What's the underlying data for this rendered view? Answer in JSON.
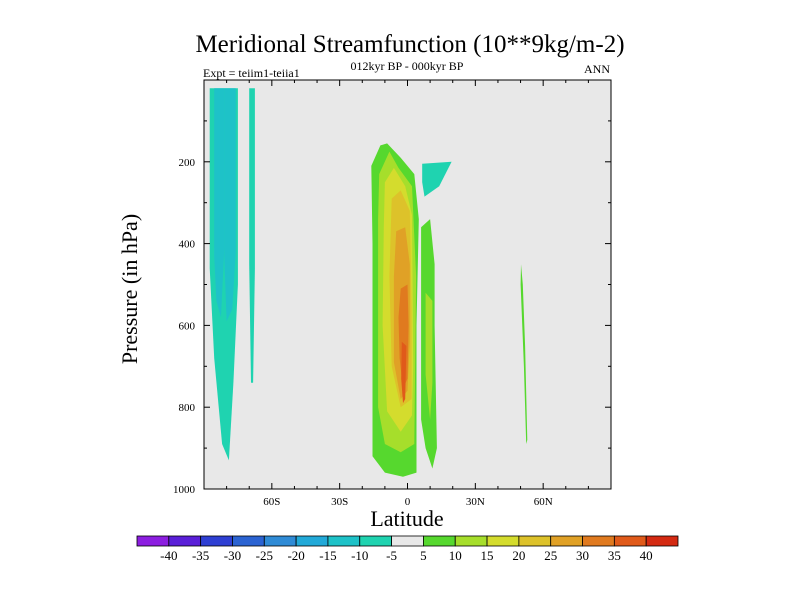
{
  "chart_data": {
    "type": "contour",
    "title": "Meridional Streamfunction (10**9kg/m-2)",
    "subtitle_left": "Expt = teiim1-teiia1",
    "subtitle_center": "012kyr BP - 000kyr BP",
    "subtitle_right": "ANN",
    "xlabel": "Latitude",
    "ylabel": "Pressure (in hPa)",
    "xlim": [
      -90,
      90
    ],
    "ylim": [
      0,
      1000
    ],
    "y_reversed": true,
    "background_color": "#e8e8e8",
    "x_ticks": [
      {
        "value": -60,
        "label": "60S"
      },
      {
        "value": -30,
        "label": "30S"
      },
      {
        "value": 0,
        "label": "0"
      },
      {
        "value": 30,
        "label": "30N"
      },
      {
        "value": 60,
        "label": "60N"
      }
    ],
    "y_ticks": [
      {
        "value": 200,
        "label": "200"
      },
      {
        "value": 400,
        "label": "400"
      },
      {
        "value": 600,
        "label": "600"
      },
      {
        "value": 800,
        "label": "800"
      },
      {
        "value": 1000,
        "label": "1000"
      }
    ],
    "colorbar": {
      "levels": [
        "-40",
        "-35",
        "-30",
        "-25",
        "-20",
        "-15",
        "-10",
        "-5",
        "5",
        "10",
        "15",
        "20",
        "25",
        "30",
        "35",
        "40"
      ],
      "colors": [
        "#8c1ee0",
        "#5a1fd8",
        "#2e3fd3",
        "#2b63d2",
        "#2f8bd6",
        "#22a9d8",
        "#1ec2c8",
        "#1fd3b0",
        "#e8e8e8",
        "#56d82e",
        "#a6de2b",
        "#d4dc2d",
        "#ddc22a",
        "#e0a126",
        "#e07a1f",
        "#e05a1a",
        "#d42a12"
      ]
    },
    "regions": [
      {
        "level": "-5",
        "color": "#1fd3b0",
        "points": [
          [
            -87.5,
            20
          ],
          [
            -75,
            20
          ],
          [
            -75,
            500
          ],
          [
            -77,
            740
          ],
          [
            -79,
            930
          ],
          [
            -82,
            890
          ],
          [
            -85.5,
            680
          ],
          [
            -87.5,
            460
          ]
        ]
      },
      {
        "level": "-10",
        "color": "#1ec2c8",
        "points": [
          [
            -85.5,
            20
          ],
          [
            -81,
            20
          ],
          [
            -81,
            410
          ],
          [
            -82.5,
            580
          ],
          [
            -84.5,
            540
          ],
          [
            -85.5,
            430
          ]
        ]
      },
      {
        "level": "-10",
        "color": "#1ec2c8",
        "points": [
          [
            -81,
            20
          ],
          [
            -76,
            20
          ],
          [
            -76,
            420
          ],
          [
            -77.5,
            560
          ],
          [
            -80,
            590
          ],
          [
            -81,
            430
          ]
        ]
      },
      {
        "level": "-5",
        "color": "#1fd3b0",
        "points": [
          [
            -70,
            20
          ],
          [
            -67.5,
            20
          ],
          [
            -67.5,
            460
          ],
          [
            -68.3,
            740
          ],
          [
            -69.2,
            740
          ],
          [
            -70,
            450
          ]
        ]
      },
      {
        "level": "-5",
        "color": "#1fd3b0",
        "points": [
          [
            6.5,
            205
          ],
          [
            19.5,
            200
          ],
          [
            14,
            260
          ],
          [
            7.5,
            285
          ],
          [
            6.5,
            250
          ]
        ]
      },
      {
        "level": "5",
        "color": "#56d82e",
        "points": [
          [
            -16,
            210
          ],
          [
            -12,
            160
          ],
          [
            -9,
            155
          ],
          [
            -3,
            190
          ],
          [
            3,
            230
          ],
          [
            5,
            340
          ],
          [
            4,
            600
          ],
          [
            4,
            960
          ],
          [
            -2,
            970
          ],
          [
            -10,
            960
          ],
          [
            -15.5,
            920
          ],
          [
            -15.5,
            400
          ]
        ]
      },
      {
        "level": "5",
        "color": "#56d82e",
        "points": [
          [
            6,
            360
          ],
          [
            10,
            340
          ],
          [
            12,
            450
          ],
          [
            12,
            600
          ],
          [
            13,
            900
          ],
          [
            11,
            950
          ],
          [
            8,
            900
          ],
          [
            6,
            830
          ],
          [
            6,
            450
          ]
        ]
      },
      {
        "level": "5",
        "color": "#56d82e",
        "points": [
          [
            50.2,
            450
          ],
          [
            51,
            500
          ],
          [
            52,
            650
          ],
          [
            53,
            880
          ],
          [
            52.5,
            890
          ],
          [
            51.5,
            700
          ],
          [
            50,
            500
          ]
        ]
      },
      {
        "level": "10",
        "color": "#a6de2b",
        "points": [
          [
            -12.5,
            230
          ],
          [
            -8,
            175
          ],
          [
            -4,
            215
          ],
          [
            2,
            260
          ],
          [
            3.8,
            480
          ],
          [
            3.5,
            650
          ],
          [
            3,
            890
          ],
          [
            -3,
            910
          ],
          [
            -10,
            890
          ],
          [
            -13,
            800
          ],
          [
            -13,
            340
          ]
        ]
      },
      {
        "level": "10",
        "color": "#a6de2b",
        "points": [
          [
            8,
            520
          ],
          [
            11,
            540
          ],
          [
            11,
            740
          ],
          [
            10,
            830
          ],
          [
            8,
            720
          ]
        ]
      },
      {
        "level": "15",
        "color": "#d4dc2d",
        "points": [
          [
            -10,
            250
          ],
          [
            -6,
            215
          ],
          [
            -1,
            260
          ],
          [
            2,
            330
          ],
          [
            2.5,
            700
          ],
          [
            2,
            820
          ],
          [
            -3,
            860
          ],
          [
            -9,
            810
          ],
          [
            -11,
            600
          ],
          [
            -10.5,
            360
          ]
        ]
      },
      {
        "level": "20",
        "color": "#ddc22a",
        "points": [
          [
            -7,
            290
          ],
          [
            -3,
            270
          ],
          [
            1,
            320
          ],
          [
            1.8,
            560
          ],
          [
            1.8,
            780
          ],
          [
            -3,
            800
          ],
          [
            -7,
            700
          ],
          [
            -8,
            480
          ]
        ]
      },
      {
        "level": "25",
        "color": "#e0a126",
        "points": [
          [
            -5,
            370
          ],
          [
            -1,
            360
          ],
          [
            1,
            450
          ],
          [
            1,
            640
          ],
          [
            0,
            760
          ],
          [
            -3,
            780
          ],
          [
            -6,
            690
          ],
          [
            -6,
            480
          ]
        ]
      },
      {
        "level": "30",
        "color": "#e07a1f",
        "points": [
          [
            -3,
            510
          ],
          [
            0,
            500
          ],
          [
            0.5,
            600
          ],
          [
            0,
            730
          ],
          [
            -2,
            755
          ],
          [
            -3.5,
            680
          ],
          [
            -4,
            580
          ]
        ]
      },
      {
        "level": "35",
        "color": "#e05a1a",
        "points": [
          [
            -2.5,
            640
          ],
          [
            -0.5,
            650
          ],
          [
            -1,
            780
          ],
          [
            -2,
            790
          ],
          [
            -2.8,
            730
          ]
        ]
      }
    ]
  }
}
